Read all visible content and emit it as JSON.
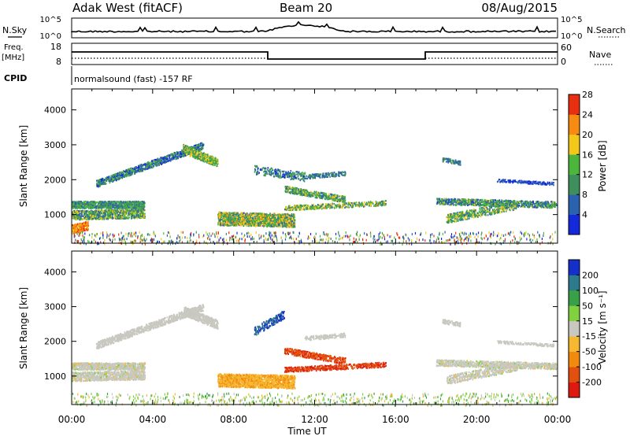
{
  "header": {
    "site": "Adak West (fitACF)",
    "beam": "Beam 20",
    "date": "08/Aug/2015"
  },
  "noise_panel": {
    "left_label": "N.Sky",
    "right_label": "N.Search",
    "ticks": [
      "10^5",
      "10^0"
    ]
  },
  "freq_panel": {
    "left_label_1": "Freq.",
    "left_label_2": "[MHz]",
    "left_ticks": [
      "18",
      "8"
    ],
    "right_label": "Nave",
    "right_ticks": [
      "60",
      "0"
    ]
  },
  "cpid": {
    "label": "CPID",
    "text": "normalsound (fast) -157 RF"
  },
  "chart_data": [
    {
      "type": "heatmap",
      "title": "",
      "ylabel": "Slant Range [km]",
      "xlabel": "",
      "x_ticks": [
        "00:00",
        "04:00",
        "08:00",
        "12:00",
        "16:00",
        "20:00",
        "00:00"
      ],
      "ylim": [
        180,
        4600
      ],
      "y_ticks": [
        1000,
        2000,
        3000,
        4000
      ],
      "colorbar": {
        "label": "Power [dB]",
        "ticks": [
          4,
          8,
          12,
          16,
          20,
          24,
          28
        ],
        "colors": [
          "#1428dc",
          "#2a62b0",
          "#3f8f5c",
          "#4cb63c",
          "#f4c81a",
          "#f78a10",
          "#e83010"
        ]
      }
    },
    {
      "type": "heatmap",
      "title": "",
      "ylabel": "Slant Range [km]",
      "xlabel": "Time UT",
      "x_ticks": [
        "00:00",
        "04:00",
        "08:00",
        "12:00",
        "16:00",
        "20:00",
        "00:00"
      ],
      "ylim": [
        180,
        4600
      ],
      "y_ticks": [
        1000,
        2000,
        3000,
        4000
      ],
      "colorbar": {
        "label": "Velocity [m s⁻¹]",
        "ticks": [
          200,
          100,
          50,
          15,
          -15,
          -50,
          -100,
          -200
        ],
        "colors": [
          "#1430c8",
          "#2d7a8c",
          "#3aa048",
          "#80d040",
          "#c8c8c0",
          "#f5b830",
          "#f28a10",
          "#e25010",
          "#dc1a10"
        ]
      }
    }
  ]
}
